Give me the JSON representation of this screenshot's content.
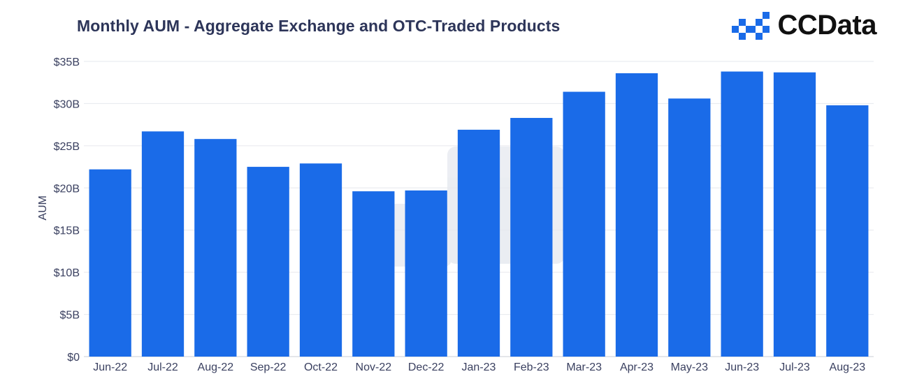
{
  "header": {
    "title": "Monthly AUM - Aggregate Exchange and OTC-Traded Products",
    "brand": "CCData",
    "brand_icon": "ccdata-logo-icon"
  },
  "colors": {
    "bar": "#1a6be8",
    "title": "#2d3559",
    "axis_text": "#3a4060",
    "grid": "#e6e8ee"
  },
  "chart_data": {
    "type": "bar",
    "title": "Monthly AUM - Aggregate Exchange and OTC-Traded Products",
    "xlabel": "",
    "ylabel": "AUM",
    "categories": [
      "Jun-22",
      "Jul-22",
      "Aug-22",
      "Sep-22",
      "Oct-22",
      "Nov-22",
      "Dec-22",
      "Jan-23",
      "Feb-23",
      "Mar-23",
      "Apr-23",
      "May-23",
      "Jun-23",
      "Jul-23",
      "Aug-23"
    ],
    "values": [
      22.2,
      26.7,
      25.8,
      22.5,
      22.9,
      19.6,
      19.7,
      26.9,
      28.3,
      31.4,
      33.6,
      30.6,
      33.8,
      33.7,
      29.8
    ],
    "unit": "B",
    "ylim": [
      0,
      35
    ],
    "yticks": [
      0,
      5,
      10,
      15,
      20,
      25,
      30,
      35
    ],
    "ytick_labels": [
      "$0",
      "$5B",
      "$10B",
      "$15B",
      "$20B",
      "$25B",
      "$30B",
      "$35B"
    ],
    "grid": true,
    "legend": "none"
  }
}
